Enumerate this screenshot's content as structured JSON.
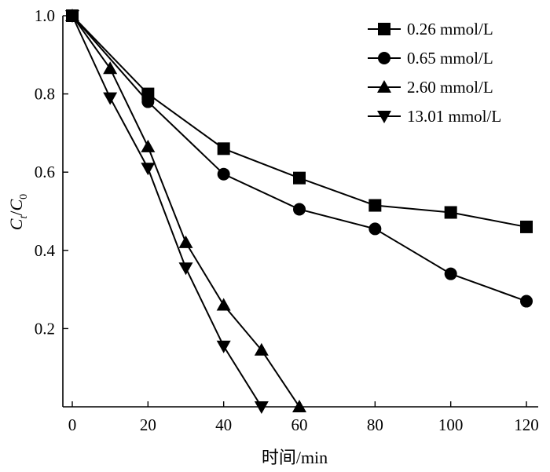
{
  "chart_data": {
    "type": "line",
    "xlabel": "时间/min",
    "ylabel": {
      "main": "C",
      "num_sub": "t",
      "slash": "/",
      "den": "C",
      "den_sub": "0"
    },
    "xlim": [
      0,
      120
    ],
    "ylim": [
      0,
      1.0
    ],
    "x_ticks": [
      0,
      20,
      40,
      60,
      80,
      100,
      120
    ],
    "y_ticks": [
      0.2,
      0.4,
      0.6,
      0.8,
      1.0
    ],
    "x_tick_labels": [
      "0",
      "20",
      "40",
      "60",
      "80",
      "100",
      "120"
    ],
    "y_tick_labels": [
      "0.2",
      "0.4",
      "0.6",
      "0.8",
      "1.0"
    ],
    "grid": false,
    "legend_position": "top-right",
    "series": [
      {
        "name": "0.26 mmol/L",
        "marker": "square",
        "x": [
          0,
          20,
          40,
          60,
          80,
          100,
          120
        ],
        "y": [
          1.0,
          0.8,
          0.66,
          0.585,
          0.515,
          0.497,
          0.46
        ]
      },
      {
        "name": "0.65 mmol/L",
        "marker": "circle",
        "x": [
          0,
          20,
          40,
          60,
          80,
          100,
          120
        ],
        "y": [
          1.0,
          0.78,
          0.595,
          0.505,
          0.455,
          0.34,
          0.27
        ]
      },
      {
        "name": "2.60 mmol/L",
        "marker": "triangle-up",
        "x": [
          0,
          10,
          20,
          30,
          40,
          50,
          60
        ],
        "y": [
          1.0,
          0.865,
          0.665,
          0.42,
          0.26,
          0.145,
          0.0
        ]
      },
      {
        "name": "13.01 mmol/L",
        "marker": "triangle-down",
        "x": [
          0,
          10,
          20,
          30,
          40,
          50
        ],
        "y": [
          1.0,
          0.79,
          0.61,
          0.355,
          0.155,
          0.0
        ]
      }
    ]
  }
}
